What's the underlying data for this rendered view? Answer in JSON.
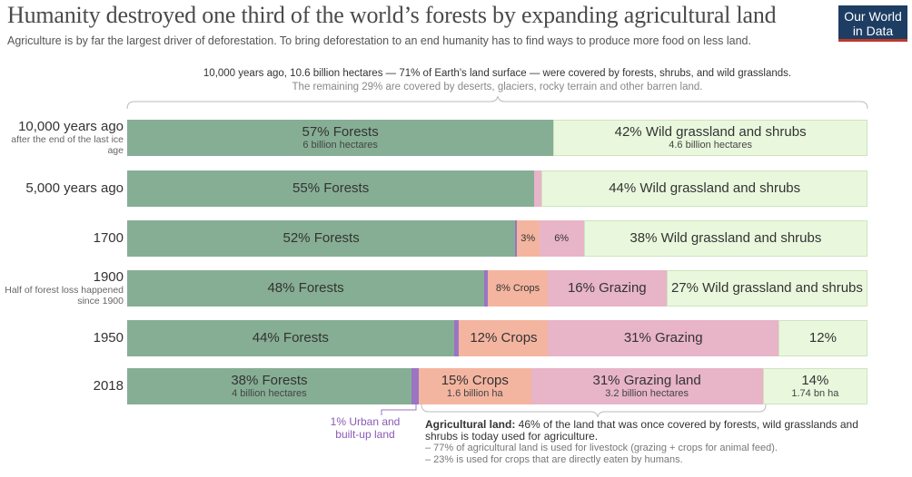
{
  "title": "Humanity destroyed one third of the world’s forests by expanding agricultural land",
  "subtitle": "Agriculture is by far the largest driver of deforestation. To bring deforestation to an end humanity has to find ways to produce more food on less land.",
  "logo": {
    "line1": "Our World",
    "line2": "in Data",
    "bg": "#1d3d63",
    "accent": "#c0392b"
  },
  "top_note": "10,000 years ago, 10.6 billion hectares — 71% of Earth's land surface — were covered by forests, shrubs, and wild grasslands.",
  "top_note2": "The remaining 29% are covered by deserts, glaciers, rocky terrain and other barren land.",
  "annotations": {
    "urban": "1% Urban and built-up land",
    "agri_bold": "Agricultural land:",
    "agri_text": " 46% of the land that was once covered by forests, wild grasslands and shrubs is today used for agriculture.",
    "agri_line1": "– 77% of agricultural land is used for livestock (grazing + crops for animal feed).",
    "agri_line2": "– 23% is used for crops that are directly eaten by humans."
  },
  "chart_data": {
    "type": "bar",
    "orientation": "horizontal-stacked",
    "unit": "% of habitable land once covered by forests, shrubs and wild grasslands",
    "colors": {
      "forest": "#86ae94",
      "urban": "#9b74c4",
      "crops": "#f4b5a0",
      "grazing": "#e8b4c8",
      "wild": "#e9f8dd"
    },
    "rows": [
      {
        "label": "10,000 years ago",
        "sub": "after the end of the last ice age",
        "segments": [
          {
            "kind": "forest",
            "value": 57,
            "label": "57% Forests",
            "sub": "6 billion hectares"
          },
          {
            "kind": "wild",
            "value": 42,
            "label": "42% Wild grassland and shrubs",
            "sub": "4.6 billion hectares"
          }
        ]
      },
      {
        "label": "5,000 years ago",
        "sub": "",
        "segments": [
          {
            "kind": "forest",
            "value": 55,
            "label": "55% Forests",
            "sub": ""
          },
          {
            "kind": "grazing",
            "value": 1,
            "label": "",
            "sub": ""
          },
          {
            "kind": "wild",
            "value": 44,
            "label": "44% Wild grassland and shrubs",
            "sub": ""
          }
        ]
      },
      {
        "label": "1700",
        "sub": "",
        "segments": [
          {
            "kind": "forest",
            "value": 52,
            "label": "52% Forests",
            "sub": ""
          },
          {
            "kind": "urban",
            "value": 0.2,
            "label": "",
            "sub": ""
          },
          {
            "kind": "crops",
            "value": 3,
            "label": "3%",
            "sub": ""
          },
          {
            "kind": "grazing",
            "value": 6,
            "label": "6%",
            "sub": ""
          },
          {
            "kind": "wild",
            "value": 38,
            "label": "38% Wild grassland and shrubs",
            "sub": ""
          }
        ]
      },
      {
        "label": "1900",
        "sub": "Half of forest loss happened since 1900",
        "segments": [
          {
            "kind": "forest",
            "value": 48,
            "label": "48% Forests",
            "sub": ""
          },
          {
            "kind": "urban",
            "value": 0.5,
            "label": "",
            "sub": ""
          },
          {
            "kind": "crops",
            "value": 8,
            "label": "8% Crops",
            "sub": ""
          },
          {
            "kind": "grazing",
            "value": 16,
            "label": "16% Grazing",
            "sub": ""
          },
          {
            "kind": "wild",
            "value": 27,
            "label": "27% Wild grassland and shrubs",
            "sub": ""
          }
        ]
      },
      {
        "label": "1950",
        "sub": "",
        "segments": [
          {
            "kind": "forest",
            "value": 44,
            "label": "44% Forests",
            "sub": ""
          },
          {
            "kind": "urban",
            "value": 0.7,
            "label": "",
            "sub": ""
          },
          {
            "kind": "crops",
            "value": 12,
            "label": "12% Crops",
            "sub": ""
          },
          {
            "kind": "grazing",
            "value": 31,
            "label": "31% Grazing",
            "sub": ""
          },
          {
            "kind": "wild",
            "value": 12,
            "label": "12%",
            "sub": ""
          }
        ]
      },
      {
        "label": "2018",
        "sub": "",
        "segments": [
          {
            "kind": "forest",
            "value": 38,
            "label": "38% Forests",
            "sub": "4 billion hectares"
          },
          {
            "kind": "urban",
            "value": 1,
            "label": "",
            "sub": ""
          },
          {
            "kind": "crops",
            "value": 15,
            "label": "15% Crops",
            "sub": "1.6 billion ha"
          },
          {
            "kind": "grazing",
            "value": 31,
            "label": "31% Grazing land",
            "sub": "3.2 billion hectares"
          },
          {
            "kind": "wild",
            "value": 14,
            "label": "14%",
            "sub": "1.74 bn ha"
          }
        ]
      }
    ]
  }
}
